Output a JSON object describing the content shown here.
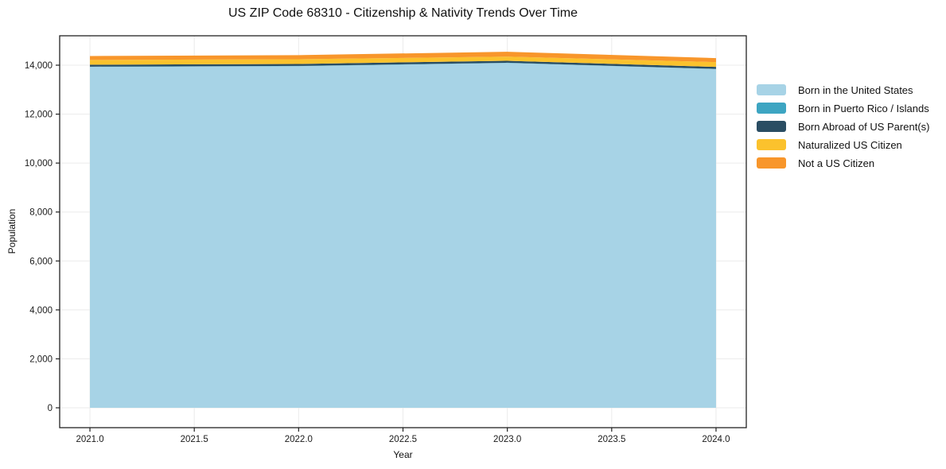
{
  "chart_data": {
    "type": "area",
    "stacked": true,
    "title": "US ZIP Code 68310 - Citizenship & Nativity Trends Over Time",
    "xlabel": "Year",
    "ylabel": "Population",
    "x": [
      2021,
      2022,
      2023,
      2024
    ],
    "series": [
      {
        "name": "Born in the United States",
        "color": "#A7D3E6",
        "values": [
          13930,
          13960,
          14090,
          13840
        ]
      },
      {
        "name": "Born in Puerto Rico / Islands",
        "color": "#3DA5C2",
        "values": [
          10,
          10,
          10,
          10
        ]
      },
      {
        "name": "Born Abroad of US Parent(s)",
        "color": "#2A4D63",
        "values": [
          80,
          80,
          80,
          80
        ]
      },
      {
        "name": "Naturalized US Citizen",
        "color": "#FBC22D",
        "values": [
          195,
          195,
          170,
          195
        ]
      },
      {
        "name": "Not a US Citizen",
        "color": "#F8962B",
        "values": [
          160,
          165,
          200,
          165
        ]
      }
    ],
    "xlim": [
      2020.855,
      2024.145
    ],
    "ylim": [
      -812,
      15202
    ],
    "xticks": {
      "values": [
        2021.0,
        2021.5,
        2022.0,
        2022.5,
        2023.0,
        2023.5,
        2024.0
      ],
      "labels": [
        "2021.0",
        "2021.5",
        "2022.0",
        "2022.5",
        "2023.0",
        "2023.5",
        "2024.0"
      ]
    },
    "yticks": {
      "values": [
        0,
        2000,
        4000,
        6000,
        8000,
        10000,
        12000,
        14000
      ],
      "labels": [
        "0",
        "2,000",
        "4,000",
        "6,000",
        "8,000",
        "10,000",
        "12,000",
        "14,000"
      ]
    },
    "grid": true,
    "legend_position": "right-outside",
    "frame_color": "#222222",
    "grid_color": "#ebebeb"
  }
}
